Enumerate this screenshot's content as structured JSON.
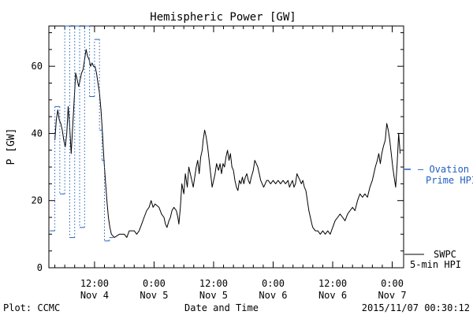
{
  "colors": {
    "black": "#000000",
    "ovation": "#1f5fbf",
    "background": "#ffffff"
  },
  "chart_data": {
    "type": "line",
    "title": "Hemispheric Power [GW]",
    "xlabel": "Date and Time",
    "ylabel": "P [GW]",
    "ylim": [
      0,
      72
    ],
    "xlim_hours": [
      0,
      72
    ],
    "xrange_label": "2015-11-03 04:00 to 2015-11-07 00:00 (hours since 2015-11-03 04:00)",
    "yticks": [
      0,
      20,
      40,
      60
    ],
    "xticks": [
      {
        "h": 8,
        "time": "12:00",
        "date": "Nov 4"
      },
      {
        "h": 20,
        "time": "0:00",
        "date": "Nov 5"
      },
      {
        "h": 32,
        "time": "12:00",
        "date": "Nov 5"
      },
      {
        "h": 44,
        "time": "0:00",
        "date": "Nov 6"
      },
      {
        "h": 56,
        "time": "12:00",
        "date": "Nov 6"
      },
      {
        "h": 68,
        "time": "0:00",
        "date": "Nov 7"
      }
    ],
    "legend_placement": "right",
    "series": [
      {
        "name": "SWPC 5-min HPI",
        "style": "solid",
        "color": "#000000",
        "points": [
          [
            0.0,
            38
          ],
          [
            0.3,
            44
          ],
          [
            0.6,
            47
          ],
          [
            0.9,
            44
          ],
          [
            1.2,
            43
          ],
          [
            1.5,
            41
          ],
          [
            1.8,
            38
          ],
          [
            2.1,
            36
          ],
          [
            2.4,
            40
          ],
          [
            2.7,
            48
          ],
          [
            3.0,
            42
          ],
          [
            3.3,
            34
          ],
          [
            3.6,
            42
          ],
          [
            3.9,
            50
          ],
          [
            4.2,
            58
          ],
          [
            4.5,
            56
          ],
          [
            4.8,
            54
          ],
          [
            5.1,
            56
          ],
          [
            5.4,
            58
          ],
          [
            5.7,
            59
          ],
          [
            6.0,
            62
          ],
          [
            6.3,
            65
          ],
          [
            6.6,
            63
          ],
          [
            6.9,
            62
          ],
          [
            7.2,
            60
          ],
          [
            7.5,
            61
          ],
          [
            7.8,
            60
          ],
          [
            8.1,
            60
          ],
          [
            8.4,
            58
          ],
          [
            8.7,
            55
          ],
          [
            9.0,
            52
          ],
          [
            9.3,
            47
          ],
          [
            9.6,
            40
          ],
          [
            9.9,
            32
          ],
          [
            10.2,
            26
          ],
          [
            10.5,
            20
          ],
          [
            10.8,
            15
          ],
          [
            11.1,
            12
          ],
          [
            11.4,
            10
          ],
          [
            12.0,
            9
          ],
          [
            13.0,
            10
          ],
          [
            14.0,
            10
          ],
          [
            14.5,
            9
          ],
          [
            15.0,
            11
          ],
          [
            16.0,
            11
          ],
          [
            16.5,
            10
          ],
          [
            17.0,
            11
          ],
          [
            17.5,
            13
          ],
          [
            18.0,
            15
          ],
          [
            18.5,
            17
          ],
          [
            19.0,
            18
          ],
          [
            19.4,
            20
          ],
          [
            19.8,
            18
          ],
          [
            20.2,
            19
          ],
          [
            21.0,
            18
          ],
          [
            21.5,
            16
          ],
          [
            22.0,
            15
          ],
          [
            22.3,
            13
          ],
          [
            22.6,
            12
          ],
          [
            23.0,
            14
          ],
          [
            23.3,
            15
          ],
          [
            23.6,
            17
          ],
          [
            24.0,
            18
          ],
          [
            24.5,
            17
          ],
          [
            24.8,
            15
          ],
          [
            25.0,
            13
          ],
          [
            25.3,
            18
          ],
          [
            25.6,
            25
          ],
          [
            26.0,
            22
          ],
          [
            26.3,
            28
          ],
          [
            26.7,
            24
          ],
          [
            27.0,
            30
          ],
          [
            27.3,
            28
          ],
          [
            27.6,
            26
          ],
          [
            27.9,
            24
          ],
          [
            28.2,
            27
          ],
          [
            28.5,
            30
          ],
          [
            28.8,
            32
          ],
          [
            29.1,
            28
          ],
          [
            29.4,
            33
          ],
          [
            29.7,
            35
          ],
          [
            29.9,
            38
          ],
          [
            30.2,
            41
          ],
          [
            30.5,
            39
          ],
          [
            30.8,
            36
          ],
          [
            31.1,
            32
          ],
          [
            31.4,
            28
          ],
          [
            31.7,
            24
          ],
          [
            32.0,
            26
          ],
          [
            32.3,
            28
          ],
          [
            32.6,
            31
          ],
          [
            33.0,
            29
          ],
          [
            33.3,
            31
          ],
          [
            33.6,
            28
          ],
          [
            33.9,
            31
          ],
          [
            34.2,
            30
          ],
          [
            34.5,
            33
          ],
          [
            34.8,
            35
          ],
          [
            35.1,
            32
          ],
          [
            35.4,
            34
          ],
          [
            35.7,
            30
          ],
          [
            36.0,
            29
          ],
          [
            36.3,
            26
          ],
          [
            36.6,
            24
          ],
          [
            36.9,
            23
          ],
          [
            37.2,
            26
          ],
          [
            37.5,
            25
          ],
          [
            37.8,
            27
          ],
          [
            38.1,
            25
          ],
          [
            38.4,
            27
          ],
          [
            38.7,
            28
          ],
          [
            39.0,
            26
          ],
          [
            39.3,
            25
          ],
          [
            39.6,
            27
          ],
          [
            40.0,
            29
          ],
          [
            40.3,
            32
          ],
          [
            40.6,
            31
          ],
          [
            40.9,
            30
          ],
          [
            41.2,
            28
          ],
          [
            41.5,
            26
          ],
          [
            41.8,
            25
          ],
          [
            42.1,
            24
          ],
          [
            42.4,
            25
          ],
          [
            42.7,
            26
          ],
          [
            43.0,
            26
          ],
          [
            43.5,
            25
          ],
          [
            44.0,
            26
          ],
          [
            44.5,
            25
          ],
          [
            45.0,
            26
          ],
          [
            45.5,
            25
          ],
          [
            46.0,
            26
          ],
          [
            46.5,
            25
          ],
          [
            47.0,
            26
          ],
          [
            47.3,
            24
          ],
          [
            47.6,
            25
          ],
          [
            47.9,
            26
          ],
          [
            48.2,
            24
          ],
          [
            48.5,
            25
          ],
          [
            48.8,
            28
          ],
          [
            49.1,
            27
          ],
          [
            49.4,
            26
          ],
          [
            49.7,
            25
          ],
          [
            50.0,
            26
          ],
          [
            50.3,
            24
          ],
          [
            50.6,
            23
          ],
          [
            50.9,
            20
          ],
          [
            51.2,
            17
          ],
          [
            51.5,
            15
          ],
          [
            51.8,
            13
          ],
          [
            52.0,
            12
          ],
          [
            52.5,
            11
          ],
          [
            53.0,
            11
          ],
          [
            53.5,
            10
          ],
          [
            54.0,
            11
          ],
          [
            54.5,
            10
          ],
          [
            55.0,
            11
          ],
          [
            55.5,
            10
          ],
          [
            56.0,
            12
          ],
          [
            56.5,
            14
          ],
          [
            57.0,
            15
          ],
          [
            57.5,
            16
          ],
          [
            58.0,
            15
          ],
          [
            58.5,
            14
          ],
          [
            59.0,
            16
          ],
          [
            59.5,
            17
          ],
          [
            60.0,
            18
          ],
          [
            60.5,
            17
          ],
          [
            61.0,
            20
          ],
          [
            61.5,
            22
          ],
          [
            62.0,
            21
          ],
          [
            62.5,
            22
          ],
          [
            63.0,
            21
          ],
          [
            63.5,
            24
          ],
          [
            64.0,
            26
          ],
          [
            64.3,
            28
          ],
          [
            64.6,
            30
          ],
          [
            65.0,
            32
          ],
          [
            65.3,
            34
          ],
          [
            65.6,
            31
          ],
          [
            65.9,
            34
          ],
          [
            66.2,
            36
          ],
          [
            66.6,
            38
          ],
          [
            66.9,
            43
          ],
          [
            67.2,
            41
          ],
          [
            67.5,
            38
          ],
          [
            67.8,
            34
          ],
          [
            68.1,
            30
          ],
          [
            68.4,
            27
          ],
          [
            68.7,
            24
          ],
          [
            69.0,
            31
          ],
          [
            69.3,
            40
          ],
          [
            69.6,
            34
          ]
        ]
      },
      {
        "name": "Ovation Prime HPI",
        "style": "dotted-step",
        "color": "#1f5fbf",
        "points": [
          [
            -1.0,
            11
          ],
          [
            0.0,
            11
          ],
          [
            0.0,
            48
          ],
          [
            1.0,
            48
          ],
          [
            1.0,
            22
          ],
          [
            2.0,
            22
          ],
          [
            2.0,
            72
          ],
          [
            3.0,
            72
          ],
          [
            3.0,
            9
          ],
          [
            4.0,
            9
          ],
          [
            4.0,
            72
          ],
          [
            5.0,
            72
          ],
          [
            5.0,
            12
          ],
          [
            6.0,
            12
          ],
          [
            6.0,
            72
          ],
          [
            7.0,
            72
          ],
          [
            7.0,
            51
          ],
          [
            8.0,
            51
          ],
          [
            8.0,
            68
          ],
          [
            9.0,
            68
          ],
          [
            9.0,
            41
          ],
          [
            9.5,
            41
          ],
          [
            9.5,
            32
          ],
          [
            10.0,
            32
          ],
          [
            10.0,
            8
          ],
          [
            11.0,
            8
          ],
          [
            11.0,
            9
          ],
          [
            11.8,
            9
          ]
        ]
      }
    ],
    "legend": {
      "ovation_line1": "– Ovation",
      "ovation_line2": "Prime HPI",
      "swpc_line1": "SWPC",
      "swpc_line2": "5-min HPI"
    }
  },
  "footer": {
    "left": "Plot: CCMC",
    "right": "2015/11/07 00:30:12"
  }
}
